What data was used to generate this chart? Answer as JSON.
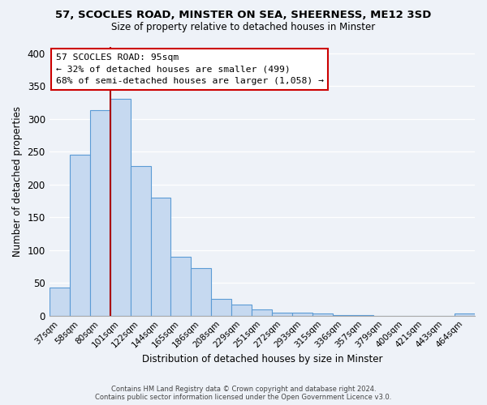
{
  "title": "57, SCOCLES ROAD, MINSTER ON SEA, SHEERNESS, ME12 3SD",
  "subtitle": "Size of property relative to detached houses in Minster",
  "xlabel": "Distribution of detached houses by size in Minster",
  "ylabel": "Number of detached properties",
  "bin_labels": [
    "37sqm",
    "58sqm",
    "80sqm",
    "101sqm",
    "122sqm",
    "144sqm",
    "165sqm",
    "186sqm",
    "208sqm",
    "229sqm",
    "251sqm",
    "272sqm",
    "293sqm",
    "315sqm",
    "336sqm",
    "357sqm",
    "379sqm",
    "400sqm",
    "421sqm",
    "443sqm",
    "464sqm"
  ],
  "bar_heights": [
    43,
    245,
    313,
    330,
    228,
    180,
    90,
    73,
    25,
    17,
    10,
    5,
    5,
    3,
    1,
    1,
    0,
    0,
    0,
    0,
    3
  ],
  "bar_color": "#c6d9f0",
  "bar_edge_color": "#5b9bd5",
  "vline_x_index": 3,
  "vline_color": "#aa0000",
  "annotation_title": "57 SCOCLES ROAD: 95sqm",
  "annotation_line1": "← 32% of detached houses are smaller (499)",
  "annotation_line2": "68% of semi-detached houses are larger (1,058) →",
  "annotation_box_facecolor": "#ffffff",
  "annotation_box_edgecolor": "#cc0000",
  "ylim": [
    0,
    410
  ],
  "yticks": [
    0,
    50,
    100,
    150,
    200,
    250,
    300,
    350,
    400
  ],
  "footer_line1": "Contains HM Land Registry data © Crown copyright and database right 2024.",
  "footer_line2": "Contains public sector information licensed under the Open Government Licence v3.0.",
  "background_color": "#eef2f8",
  "grid_color": "#ffffff"
}
